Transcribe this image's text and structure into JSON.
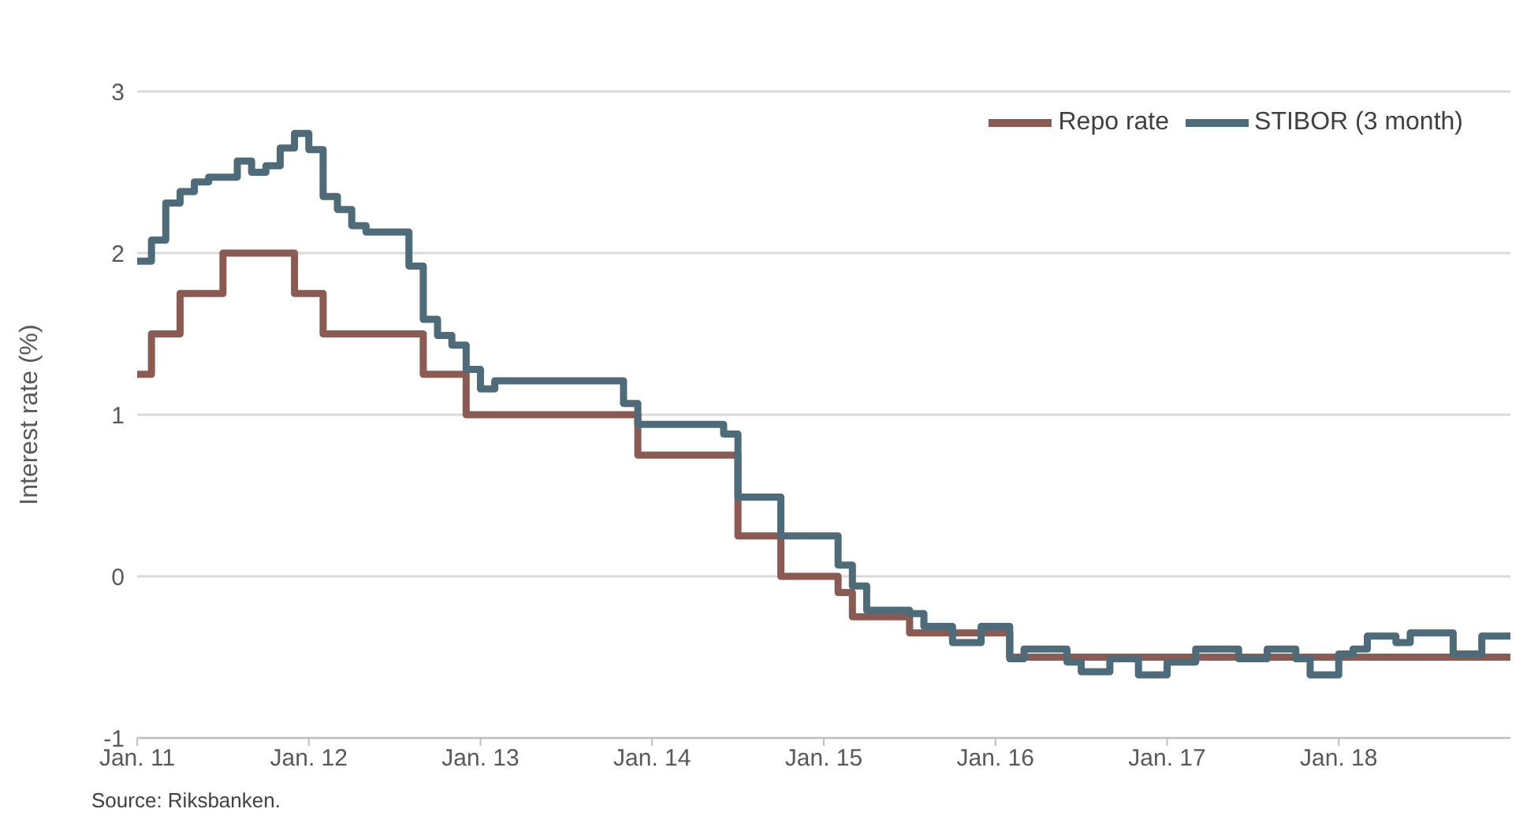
{
  "chart_data": {
    "type": "step",
    "ylabel": "Interest rate (%)",
    "ylim": [
      -1,
      3
    ],
    "yticks": [
      -1,
      0,
      1,
      2,
      3
    ],
    "xlim": [
      "2011-01",
      "2019-01"
    ],
    "xticks": [
      {
        "value": "2011-01",
        "label": "Jan. 11"
      },
      {
        "value": "2012-01",
        "label": "Jan. 12"
      },
      {
        "value": "2013-01",
        "label": "Jan. 13"
      },
      {
        "value": "2014-01",
        "label": "Jan. 14"
      },
      {
        "value": "2015-01",
        "label": "Jan. 15"
      },
      {
        "value": "2016-01",
        "label": "Jan. 16"
      },
      {
        "value": "2017-01",
        "label": "Jan. 17"
      },
      {
        "value": "2018-01",
        "label": "Jan. 18"
      }
    ],
    "grid": "y",
    "legend": "top right",
    "marker": "none",
    "line_style": "solid",
    "annotations": [
      "Source: Riksbanken."
    ],
    "series": [
      {
        "name": "Repo rate",
        "color": "#8b5a52",
        "x": [
          "2011-01",
          "2011-02",
          "2011-04",
          "2011-07",
          "2011-12",
          "2012-02",
          "2012-09",
          "2012-12",
          "2013-12",
          "2014-07",
          "2014-10",
          "2015-02",
          "2015-03",
          "2015-07",
          "2016-02",
          "2019-01"
        ],
        "values": [
          1.25,
          1.5,
          1.75,
          2.0,
          1.75,
          1.5,
          1.25,
          1.0,
          0.75,
          0.25,
          0,
          -0.1,
          -0.25,
          -0.35,
          -0.5,
          -0.5
        ]
      },
      {
        "name": "STIBOR (3 month)",
        "color": "#4e6b7a",
        "x": [
          "2011-01",
          "2011-02",
          "2011-03",
          "2011-04",
          "2011-05",
          "2011-06",
          "2011-08",
          "2011-09",
          "2011-10",
          "2011-11",
          "2011-12",
          "2012-01",
          "2012-02",
          "2012-03",
          "2012-04",
          "2012-05",
          "2012-08",
          "2012-09",
          "2012-10",
          "2012-11",
          "2012-12",
          "2013-01",
          "2013-02",
          "2013-11",
          "2013-12",
          "2014-06",
          "2014-07",
          "2014-10",
          "2015-02",
          "2015-03",
          "2015-04",
          "2015-07",
          "2015-08",
          "2015-10",
          "2015-12",
          "2016-02",
          "2016-03",
          "2016-06",
          "2016-07",
          "2016-09",
          "2016-11",
          "2017-01",
          "2017-03",
          "2017-06",
          "2017-08",
          "2017-10",
          "2017-11",
          "2018-01",
          "2018-02",
          "2018-03",
          "2018-05",
          "2018-06",
          "2018-09",
          "2018-11",
          "2019-01"
        ],
        "values": [
          1.95,
          2.08,
          2.31,
          2.38,
          2.44,
          2.47,
          2.57,
          2.5,
          2.54,
          2.65,
          2.74,
          2.64,
          2.35,
          2.27,
          2.17,
          2.13,
          1.92,
          1.59,
          1.49,
          1.43,
          1.28,
          1.16,
          1.21,
          1.07,
          0.94,
          0.88,
          0.49,
          0.25,
          0.07,
          -0.06,
          -0.21,
          -0.23,
          -0.31,
          -0.41,
          -0.31,
          -0.51,
          -0.45,
          -0.53,
          -0.59,
          -0.51,
          -0.61,
          -0.53,
          -0.45,
          -0.51,
          -0.45,
          -0.51,
          -0.61,
          -0.48,
          -0.45,
          -0.37,
          -0.41,
          -0.35,
          -0.48,
          -0.37,
          -0.37
        ]
      }
    ]
  }
}
